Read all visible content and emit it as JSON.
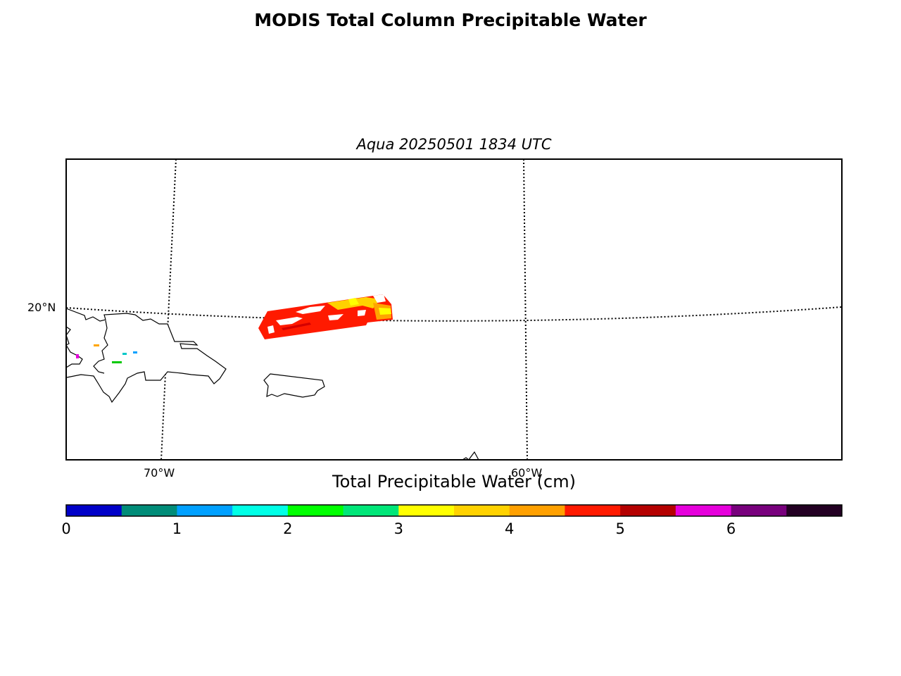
{
  "title": "MODIS Total Column Precipitable Water",
  "subtitle": "Aqua 20250501 1834 UTC",
  "map": {
    "lat_labels": [
      "20°N"
    ],
    "lon_labels": [
      "70°W",
      "60°W"
    ],
    "swath_colors": {
      "main": "#ff1a00",
      "dark": "#d40000",
      "orange": "#ffa500",
      "yellow": "#ffff00",
      "gold": "#ffd200"
    }
  },
  "colorbar": {
    "label": "Total Precipitable Water (cm)",
    "ticks": [
      "0",
      "1",
      "2",
      "3",
      "4",
      "5",
      "6"
    ],
    "bins": [
      {
        "from": 0.0,
        "to": 0.5,
        "color": "#0000c8"
      },
      {
        "from": 0.5,
        "to": 1.0,
        "color": "#008c78"
      },
      {
        "from": 1.0,
        "to": 1.5,
        "color": "#00a0ff"
      },
      {
        "from": 1.5,
        "to": 2.0,
        "color": "#00ffe6"
      },
      {
        "from": 2.0,
        "to": 2.5,
        "color": "#00ff00"
      },
      {
        "from": 2.5,
        "to": 3.0,
        "color": "#00e678"
      },
      {
        "from": 3.0,
        "to": 3.5,
        "color": "#ffff00"
      },
      {
        "from": 3.5,
        "to": 4.0,
        "color": "#ffd200"
      },
      {
        "from": 4.0,
        "to": 4.5,
        "color": "#ffa000"
      },
      {
        "from": 4.5,
        "to": 5.0,
        "color": "#ff1a00"
      },
      {
        "from": 5.0,
        "to": 5.5,
        "color": "#b40000"
      },
      {
        "from": 5.5,
        "to": 6.0,
        "color": "#e600dc"
      },
      {
        "from": 6.0,
        "to": 6.5,
        "color": "#78007d"
      },
      {
        "from": 6.5,
        "to": 7.0,
        "color": "#230023"
      }
    ]
  }
}
